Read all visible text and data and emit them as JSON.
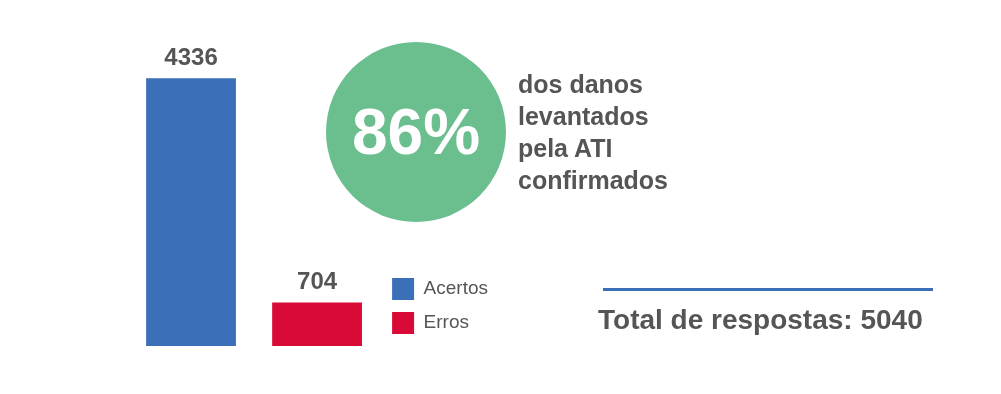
{
  "chart_data": {
    "type": "bar",
    "categories": [
      null,
      null
    ],
    "series": [
      {
        "name": "Acertos",
        "color": "#3b6fb8",
        "values": [
          4336,
          null
        ]
      },
      {
        "name": "Erros",
        "color": "#d90b36",
        "values": [
          null,
          704
        ]
      }
    ],
    "stacked": true,
    "data_labels": true,
    "legend": "bottom right",
    "tick_labels": false,
    "annotations": [
      "86%",
      "dos danos levantados pela ATI confirmados",
      "Total de respostas: 5040"
    ]
  }
}
